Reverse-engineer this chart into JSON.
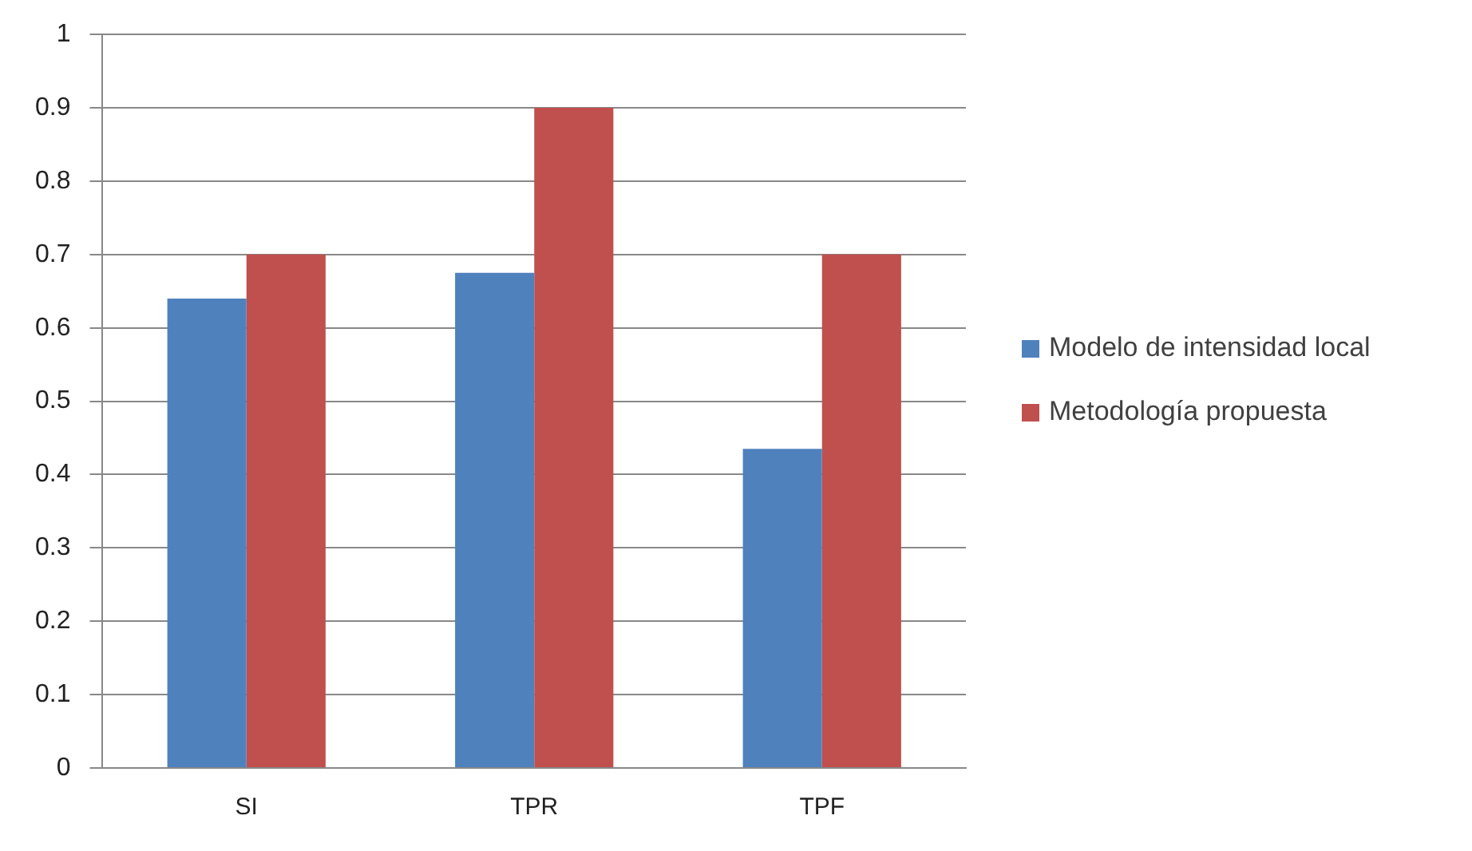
{
  "chart_data": {
    "type": "bar",
    "categories": [
      "SI",
      "TPR",
      "TPF"
    ],
    "series": [
      {
        "name": "Modelo de intensidad local",
        "color": "#4f81bd",
        "values": [
          0.64,
          0.675,
          0.435
        ]
      },
      {
        "name": "Metodología propuesta",
        "color": "#c0504d",
        "values": [
          0.7,
          0.9,
          0.7
        ]
      }
    ],
    "ylim": [
      0,
      1
    ],
    "yticks": [
      0,
      0.1,
      0.2,
      0.3,
      0.4,
      0.5,
      0.6,
      0.7,
      0.8,
      0.9,
      1
    ],
    "grid": "y",
    "legend": "right"
  }
}
